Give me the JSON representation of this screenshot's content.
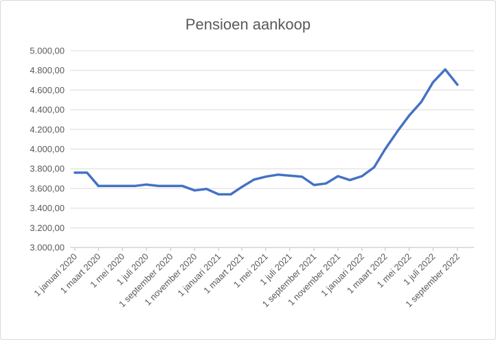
{
  "chart_data": {
    "type": "line",
    "title": "Pensioen aankoop",
    "xlabel": "",
    "ylabel": "",
    "ylim": [
      3000,
      5000
    ],
    "yticks": [
      3000,
      3200,
      3400,
      3600,
      3800,
      4000,
      4200,
      4400,
      4600,
      4800,
      5000
    ],
    "ytick_labels": [
      "3.000,00",
      "3.200,00",
      "3.400,00",
      "3.600,00",
      "3.800,00",
      "4.000,00",
      "4.200,00",
      "4.400,00",
      "4.600,00",
      "4.800,00",
      "5.000,00"
    ],
    "x_tick_labels": [
      "1 januari 2020",
      "1 maart 2020",
      "1 mei 2020",
      "1 juli 2020",
      "1 september 2020",
      "1 november 2020",
      "1 januari 2021",
      "1 maart 2021",
      "1 mei 2021",
      "1 juli 2021",
      "1 september 2021",
      "1 november 2021",
      "1 januari 2022",
      "1 maart 2022",
      "1 mei 2022",
      "1 juli 2022",
      "1 september 2022"
    ],
    "x_tick_dates": [
      "2020-01-01",
      "2020-03-01",
      "2020-05-01",
      "2020-07-01",
      "2020-09-01",
      "2020-11-01",
      "2021-01-01",
      "2021-03-01",
      "2021-05-01",
      "2021-07-01",
      "2021-09-01",
      "2021-11-01",
      "2022-01-01",
      "2022-03-01",
      "2022-05-01",
      "2022-07-01",
      "2022-09-01"
    ],
    "grid": true,
    "legend": "none",
    "series": [
      {
        "color": "#4472c4",
        "points": [
          {
            "x": "2020-01-01",
            "y": 3760
          },
          {
            "x": "2020-02-01",
            "y": 3760
          },
          {
            "x": "2020-03-01",
            "y": 3625
          },
          {
            "x": "2020-04-01",
            "y": 3625
          },
          {
            "x": "2020-05-01",
            "y": 3625
          },
          {
            "x": "2020-06-01",
            "y": 3625
          },
          {
            "x": "2020-07-01",
            "y": 3640
          },
          {
            "x": "2020-08-01",
            "y": 3625
          },
          {
            "x": "2020-09-01",
            "y": 3625
          },
          {
            "x": "2020-10-01",
            "y": 3625
          },
          {
            "x": "2020-11-01",
            "y": 3580
          },
          {
            "x": "2020-12-01",
            "y": 3595
          },
          {
            "x": "2021-01-01",
            "y": 3540
          },
          {
            "x": "2021-02-01",
            "y": 3540
          },
          {
            "x": "2021-03-01",
            "y": 3615
          },
          {
            "x": "2021-04-01",
            "y": 3690
          },
          {
            "x": "2021-05-01",
            "y": 3720
          },
          {
            "x": "2021-06-01",
            "y": 3740
          },
          {
            "x": "2021-07-01",
            "y": 3730
          },
          {
            "x": "2021-08-01",
            "y": 3720
          },
          {
            "x": "2021-09-01",
            "y": 3635
          },
          {
            "x": "2021-10-01",
            "y": 3650
          },
          {
            "x": "2021-11-01",
            "y": 3725
          },
          {
            "x": "2021-12-01",
            "y": 3685
          },
          {
            "x": "2022-01-01",
            "y": 3725
          },
          {
            "x": "2022-02-01",
            "y": 3815
          },
          {
            "x": "2022-03-01",
            "y": 4000
          },
          {
            "x": "2022-04-01",
            "y": 4180
          },
          {
            "x": "2022-05-01",
            "y": 4340
          },
          {
            "x": "2022-06-01",
            "y": 4480
          },
          {
            "x": "2022-07-01",
            "y": 4680
          },
          {
            "x": "2022-08-01",
            "y": 4810
          },
          {
            "x": "2022-09-01",
            "y": 4655
          }
        ]
      }
    ]
  }
}
